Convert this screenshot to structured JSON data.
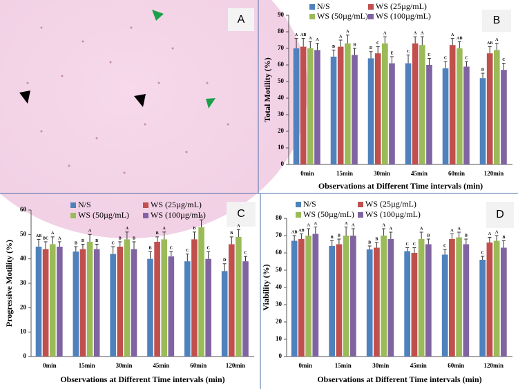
{
  "image_panel": {
    "label": "A"
  },
  "chart_data": [
    {
      "type": "bar",
      "panel_label": "B",
      "y_label": "Total Motility (%)",
      "x_label": "Observations at Different Time intervals (min)",
      "categories": [
        "0min",
        "15min",
        "30min",
        "45min",
        "60min",
        "120min"
      ],
      "ylim": [
        0,
        90
      ],
      "yticks": [
        0,
        10,
        20,
        30,
        40,
        50,
        60,
        70,
        80,
        90
      ],
      "legend": "top",
      "series": [
        {
          "name": "N/S",
          "color": "#4f81bd",
          "values": [
            70,
            65,
            64,
            61,
            58,
            52
          ],
          "errors": [
            6,
            4,
            4,
            5,
            4,
            3
          ],
          "letters": [
            "A",
            "B",
            "D",
            "C",
            "C",
            "D"
          ]
        },
        {
          "name": "WS (25µg/mL)",
          "color": "#c0504d",
          "values": [
            71,
            71,
            67,
            73,
            72,
            67
          ],
          "errors": [
            5,
            4,
            4,
            4,
            4,
            4
          ],
          "letters": [
            "AB",
            "A",
            "C",
            "A",
            "A",
            "AB"
          ]
        },
        {
          "name": "WS (50µg/mL)",
          "color": "#9bbb59",
          "values": [
            70,
            73,
            73,
            72,
            70,
            69
          ],
          "errors": [
            4,
            5,
            4,
            5,
            4,
            4
          ],
          "letters": [
            "A",
            "A",
            "A",
            "A",
            "AB",
            "A"
          ]
        },
        {
          "name": "WS (100µg/mL)",
          "color": "#8064a2",
          "values": [
            69,
            66,
            61,
            60,
            59,
            57
          ],
          "errors": [
            4,
            4,
            4,
            4,
            3,
            4
          ],
          "letters": [
            "A",
            "B",
            "E",
            "C",
            "C",
            "C"
          ]
        }
      ]
    },
    {
      "type": "bar",
      "panel_label": "C",
      "y_label": "Progressive Motility (%)",
      "x_label": "Observations at Different Time intervals (min)",
      "categories": [
        "0min",
        "15min",
        "30min",
        "45min",
        "60min",
        "120min"
      ],
      "ylim": [
        0,
        60
      ],
      "yticks": [
        0,
        10,
        20,
        30,
        40,
        50,
        60
      ],
      "legend": "top",
      "series": [
        {
          "name": "N/S",
          "color": "#4f81bd",
          "values": [
            45,
            43,
            42,
            40,
            39,
            35
          ],
          "errors": [
            3,
            2,
            3,
            3,
            3,
            3
          ],
          "letters": [
            "AB",
            "B",
            "C",
            "B",
            "C",
            "D"
          ]
        },
        {
          "name": "WS (25µg/mL)",
          "color": "#c0504d",
          "values": [
            44,
            44,
            45,
            47,
            48,
            46
          ],
          "errors": [
            3,
            2,
            2,
            2,
            3,
            3
          ],
          "letters": [
            "BC",
            "B",
            "B",
            "B",
            "B",
            "B"
          ]
        },
        {
          "name": "WS (50µg/mL)",
          "color": "#9bbb59",
          "values": [
            46,
            47,
            48,
            48,
            53,
            49
          ],
          "errors": [
            3,
            3,
            3,
            3,
            3,
            3
          ],
          "letters": [
            "A",
            "A",
            "A",
            "A",
            "A",
            "A"
          ]
        },
        {
          "name": "WS (100µg/mL)",
          "color": "#8064a2",
          "values": [
            45,
            44,
            44,
            41,
            40,
            39
          ],
          "errors": [
            2,
            2,
            3,
            2,
            3,
            2
          ],
          "letters": [
            "A",
            "B",
            "B",
            "C",
            "C",
            "C"
          ]
        }
      ]
    },
    {
      "type": "bar",
      "panel_label": "D",
      "y_label": "Viability (%)",
      "x_label": "Observations at Different Time intervals (min)",
      "categories": [
        "0min",
        "15min",
        "30min",
        "45min",
        "60min",
        "120min"
      ],
      "ylim": [
        0,
        80
      ],
      "yticks": [
        0,
        10,
        20,
        30,
        40,
        50,
        60,
        70,
        80
      ],
      "legend": "top",
      "series": [
        {
          "name": "N/S",
          "color": "#4f81bd",
          "values": [
            67,
            64,
            62,
            61,
            59,
            56
          ],
          "errors": [
            3,
            3,
            2,
            2,
            3,
            2
          ],
          "letters": [
            "AB",
            "B",
            "B",
            "C",
            "C",
            "C"
          ]
        },
        {
          "name": "WS (25µg/mL)",
          "color": "#c0504d",
          "values": [
            68,
            65,
            63,
            60,
            68,
            66
          ],
          "errors": [
            3,
            3,
            3,
            3,
            3,
            3
          ],
          "letters": [
            "AB",
            "B",
            "B",
            "C",
            "A",
            "A"
          ]
        },
        {
          "name": "WS (50µg/mL)",
          "color": "#9bbb59",
          "values": [
            70,
            70,
            70,
            68,
            69,
            67
          ],
          "errors": [
            4,
            5,
            4,
            4,
            3,
            3
          ],
          "letters": [
            "A",
            "A",
            "A",
            "A",
            "A",
            "A"
          ]
        },
        {
          "name": "WS (100µg/mL)",
          "color": "#8064a2",
          "values": [
            71,
            70,
            68,
            65,
            65,
            63
          ],
          "errors": [
            4,
            4,
            4,
            3,
            3,
            4
          ],
          "letters": [
            "A",
            "A",
            "A",
            "B",
            "B",
            "B"
          ]
        }
      ]
    }
  ]
}
